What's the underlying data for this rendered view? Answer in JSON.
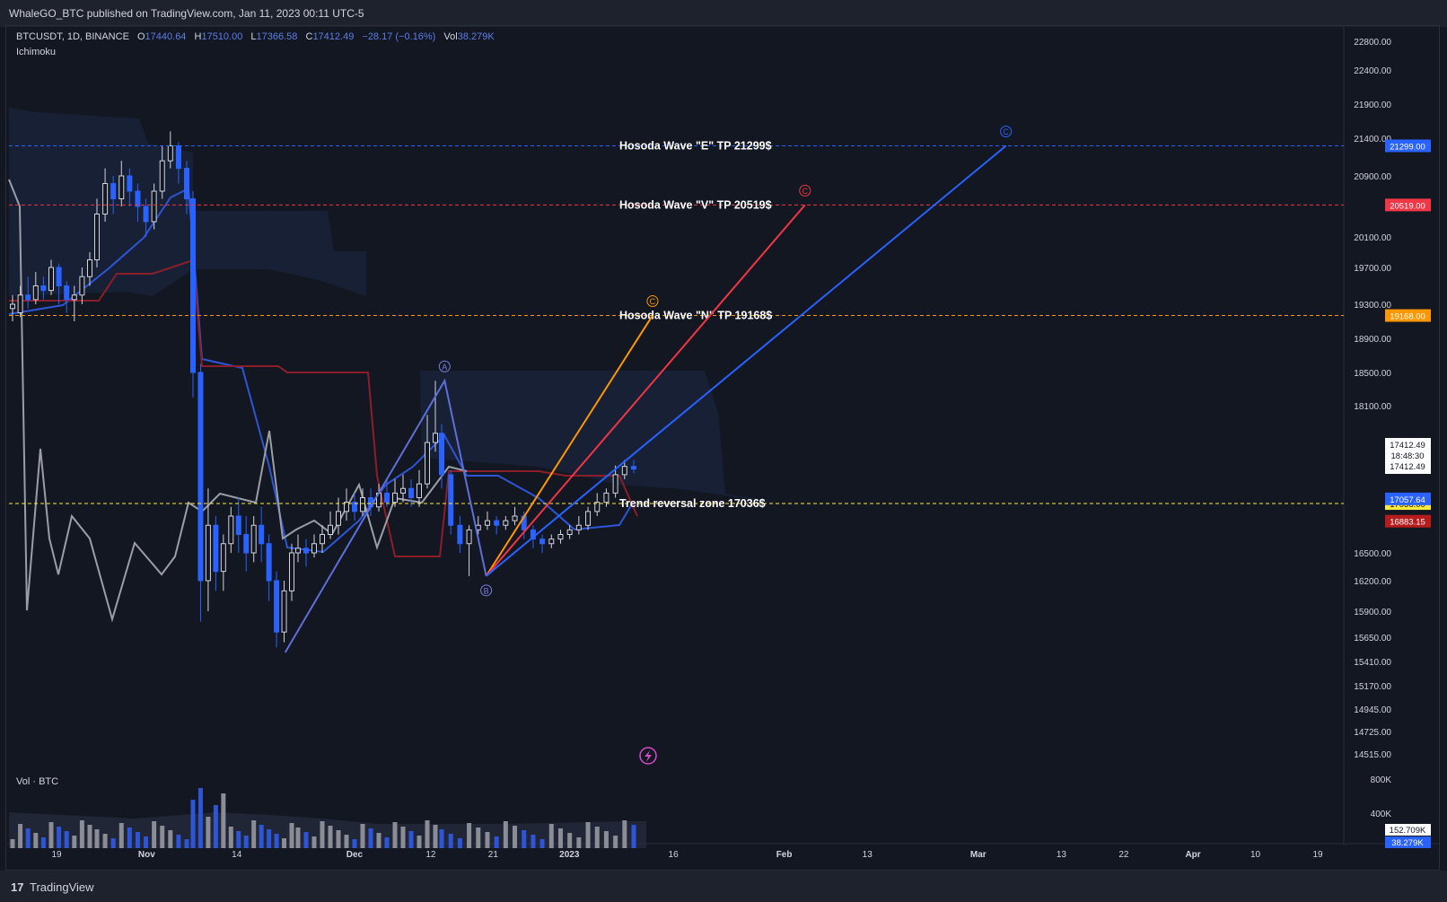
{
  "header": {
    "publish_line": "WhaleGO_BTC published on TradingView.com, Jan 11, 2023 00:11 UTC-5"
  },
  "legend": {
    "symbol": "BTCUSDT, 1D, BINANCE",
    "o_label": "O",
    "o_value": "17440.64",
    "h_label": "H",
    "h_value": "17510.00",
    "l_label": "L",
    "l_value": "17366.58",
    "c_label": "C",
    "c_value": "17412.49",
    "change": "−28.17 (−0.16%)",
    "vol_label": "Vol",
    "vol_value": "38.279K",
    "indicator": "Ichimoku"
  },
  "volume_pane": {
    "title": "Vol · BTC",
    "ticks": [
      "800K",
      "400K"
    ],
    "badge_total": "152.709K",
    "badge_vol": "38.279K"
  },
  "footer": {
    "logo_glyph": "17",
    "brand": "TradingView"
  },
  "colors": {
    "background": "#131722",
    "grid": "#1b2030",
    "bull": "#d1d4dc",
    "bear": "#2962ff",
    "tenkan": "#2e55d6",
    "kijun": "#8b1e28",
    "chikou": "#9b9ea6",
    "cloud": "#1b2846",
    "tp_e": "#2962ff",
    "tp_v": "#f23645",
    "tp_n": "#ff9800",
    "reversal": "#ffeb3b"
  },
  "chart_data": {
    "type": "candlestick",
    "title": "BTCUSDT, 1D, BINANCE",
    "y_axis": {
      "ticks": [
        22800,
        22400,
        21900,
        21400,
        20900,
        20100,
        19700,
        19300,
        18900,
        18500,
        18100,
        16500,
        16200,
        15900,
        15650,
        15410,
        15170,
        14945,
        14725,
        14515
      ],
      "tick_labels": [
        "22800.00",
        "22400.00",
        "21900.00",
        "21400.00",
        "20900.00",
        "20100.00",
        "19700.00",
        "19300.00",
        "18900.00",
        "18500.00",
        "18100.00",
        "16500.00",
        "16200.00",
        "15900.00",
        "15650.00",
        "15410.00",
        "15170.00",
        "14945.00",
        "14725.00",
        "14515.00"
      ]
    },
    "x_axis": {
      "ticks": [
        "19",
        "Nov",
        "14",
        "Dec",
        "12",
        "21",
        "2023",
        "16",
        "Feb",
        "13",
        "Mar",
        "13",
        "22",
        "Apr",
        "10",
        "19"
      ]
    },
    "horizontal_levels": [
      {
        "label": "Hosoda Wave \"E\" TP 21299$",
        "price": 21299,
        "badge": "21299.00",
        "color": "#2962ff"
      },
      {
        "label": "Hosoda Wave \"V\" TP 20519$",
        "price": 20519,
        "badge": "20519.00",
        "color": "#f23645"
      },
      {
        "label": "Hosoda Wave \"N\" TP 19168$",
        "price": 19168,
        "badge": "19168.00",
        "color": "#ff9800"
      },
      {
        "label": "Trend reversal zone 17036$",
        "price": 17036,
        "badge": "17036.00",
        "color": "#ffeb3b"
      }
    ],
    "price_badges": [
      {
        "price": 17057.64,
        "label": "17057.64",
        "color": "#2962ff"
      },
      {
        "price": 16883.15,
        "label": "16883.15",
        "color": "#b71c1c"
      }
    ],
    "last_price": {
      "price": "17412.49",
      "countdown": "18:48:30",
      "repeat": "17412.49"
    },
    "wave_points": [
      {
        "label": "A",
        "date": "Dec 14",
        "price": 18400
      },
      {
        "label": "B",
        "date": "Dec 20",
        "price": 16250
      },
      {
        "label": "C",
        "date": "Jan 13",
        "price": 19168,
        "color": "#ff9800"
      },
      {
        "label": "C",
        "date": "Feb 04",
        "price": 20519,
        "color": "#f23645"
      },
      {
        "label": "C",
        "date": "Mar 05",
        "price": 21299,
        "color": "#2962ff"
      }
    ],
    "wave_start": {
      "date": "Nov 21",
      "price": 15500
    }
  }
}
